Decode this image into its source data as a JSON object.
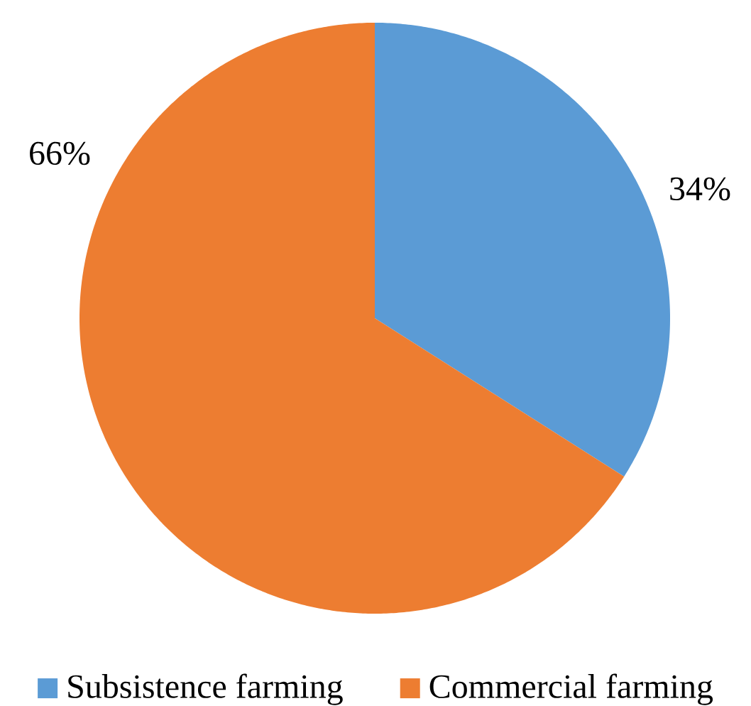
{
  "chart_data": {
    "type": "pie",
    "categories": [
      "Subsistence farming",
      "Commercial farming"
    ],
    "values": [
      34,
      66
    ],
    "colors": [
      "#5b9bd5",
      "#ed7d31"
    ],
    "value_labels": [
      "34%",
      "66%"
    ],
    "legend": "bottom"
  }
}
